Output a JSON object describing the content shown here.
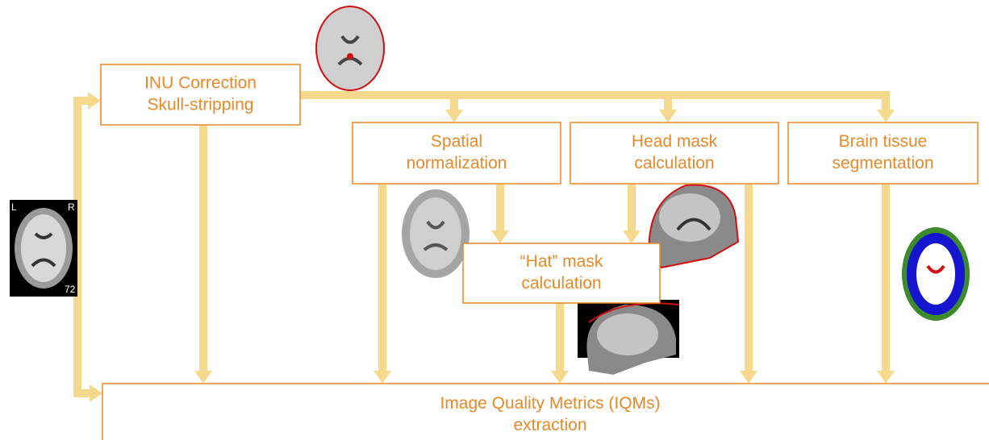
{
  "input_image": {
    "left": "L",
    "right": "R",
    "slice": "72"
  },
  "nodes": [
    {
      "lines": [
        "INU Correction",
        "Skull-stripping"
      ]
    },
    {
      "lines": [
        "Spatial",
        "normalization"
      ]
    },
    {
      "lines": [
        "Head mask",
        "calculation"
      ]
    },
    {
      "lines": [
        "Brain tissue",
        "segmentation"
      ]
    },
    {
      "lines": [
        "“Hat” mask",
        "calculation"
      ]
    },
    {
      "lines": [
        "Image Quality Metrics (IQMs)",
        "extraction"
      ]
    }
  ]
}
